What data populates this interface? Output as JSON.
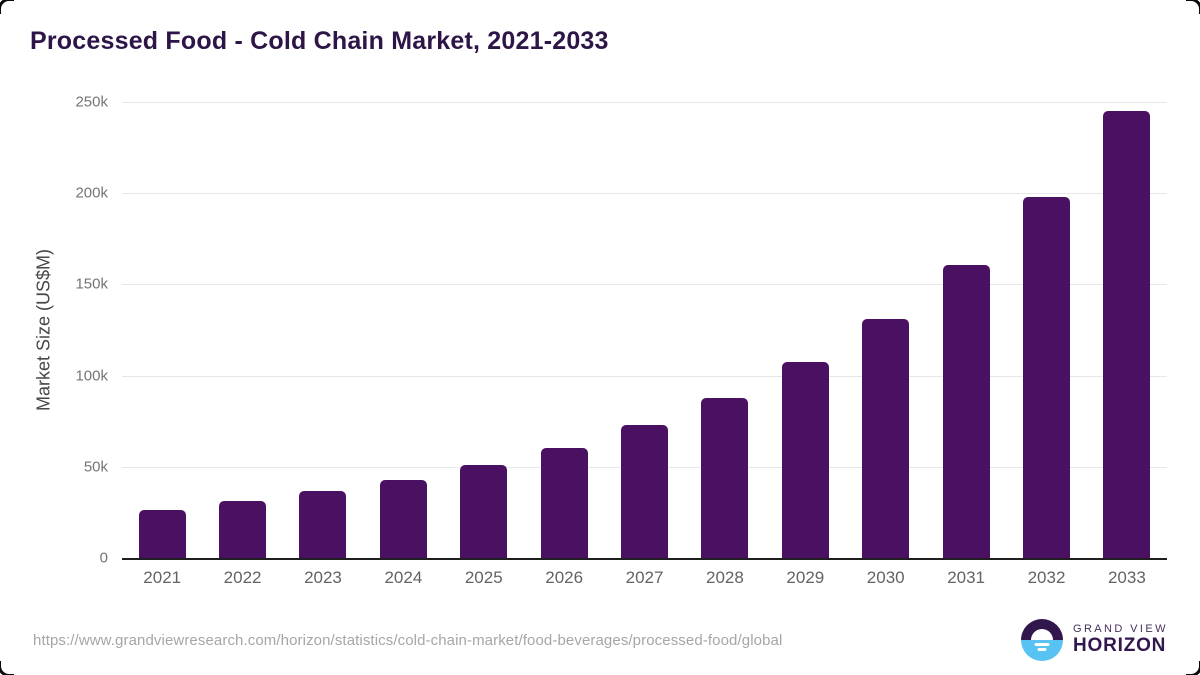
{
  "page": {
    "title": "Processed Food - Cold Chain Market, 2021-2033"
  },
  "chart_data": {
    "type": "bar",
    "title": "Processed Food - Cold Chain Market, 2021-2033",
    "xlabel": "",
    "ylabel": "Market Size (US$M)",
    "categories": [
      "2021",
      "2022",
      "2023",
      "2024",
      "2025",
      "2026",
      "2027",
      "2028",
      "2029",
      "2030",
      "2031",
      "2032",
      "2033"
    ],
    "values_usd_m": [
      26500,
      31000,
      36500,
      43000,
      51000,
      60500,
      73000,
      88000,
      107500,
      131000,
      160500,
      198000,
      245000
    ],
    "values_k": [
      26.5,
      31,
      36.5,
      43,
      51,
      60.5,
      73,
      88,
      107.5,
      131,
      160.5,
      198,
      245
    ],
    "ylim_k": [
      0,
      250
    ],
    "yticks": [
      {
        "label": "250k",
        "k": 250
      },
      {
        "label": "200k",
        "k": 200
      },
      {
        "label": "150k",
        "k": 150
      },
      {
        "label": "100k",
        "k": 100
      },
      {
        "label": "50k",
        "k": 50
      },
      {
        "label": "0",
        "k": 0
      }
    ],
    "grid": true,
    "legend": false,
    "bar_color": "#4a1162"
  },
  "footer": {
    "source_url": "https://www.grandviewresearch.com/horizon/statistics/cold-chain-market/food-beverages/processed-food/global",
    "logo": {
      "line1": "GRAND VIEW",
      "line2": "HORIZON"
    }
  },
  "colors": {
    "title_text": "#2e1547",
    "bar_fill": "#4a1162",
    "axis_label": "#474747",
    "tick_label": "#757575",
    "year_label": "#636363",
    "gridline": "#e7e7e7",
    "baseline": "#1f1f1f",
    "source_text": "#a6a6a6",
    "logo_purple": "#32174d",
    "logo_blue": "#58c2f2"
  }
}
